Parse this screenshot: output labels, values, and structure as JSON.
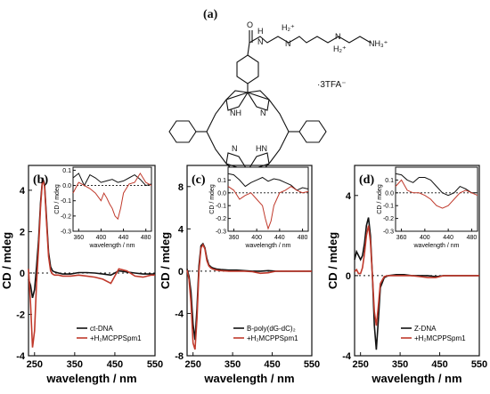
{
  "figure": {
    "panel_a_label": "(a)",
    "molecule": {
      "tail_nh": "N",
      "tail_h": "H",
      "tail_o": "O",
      "h2_plus_1": "H₂⁺",
      "h2_plus_2": "H₂⁺",
      "nh3_plus": "NH₃⁺",
      "n_tail_1": "N",
      "n_tail_2": "N",
      "ring_nh_1": "NH",
      "ring_n_1": "N",
      "ring_n_2": "N",
      "ring_hn_2": "HN",
      "counter_ion": "·3TFA⁻"
    }
  },
  "chart_data": [
    {
      "type": "line",
      "panel_label": "(b)",
      "xlabel": "wavelength / nm",
      "ylabel": "CD / mdeg",
      "xlim": [
        235,
        550
      ],
      "ylim": [
        -4,
        5.2
      ],
      "xticks": [
        250,
        350,
        450,
        550
      ],
      "yticks": [
        -4,
        -2,
        0,
        2,
        4
      ],
      "legend": {
        "placement": "bottom-right"
      },
      "series": [
        {
          "name": "ct-DNA",
          "color": "#111111",
          "x": [
            235,
            240,
            245,
            250,
            255,
            260,
            265,
            270,
            275,
            280,
            285,
            290,
            295,
            300,
            310,
            320,
            340,
            360,
            380,
            400,
            420,
            440,
            460,
            480,
            500,
            520,
            540,
            550
          ],
          "y": [
            -0.3,
            -0.6,
            -1.2,
            -0.8,
            0.3,
            1.6,
            3.4,
            4.6,
            4.3,
            2.6,
            1.0,
            0.3,
            0.1,
            0.05,
            0.0,
            -0.05,
            -0.05,
            0.02,
            0.02,
            0.0,
            -0.05,
            -0.1,
            0.1,
            0.05,
            0.0,
            -0.05,
            -0.05,
            -0.05
          ]
        },
        {
          "name": "+H₂MCPPSpm1",
          "color": "#c0392b",
          "x": [
            235,
            240,
            245,
            250,
            255,
            260,
            265,
            270,
            275,
            280,
            285,
            290,
            295,
            300,
            310,
            320,
            340,
            360,
            380,
            400,
            420,
            440,
            460,
            480,
            500,
            520,
            540,
            550
          ],
          "y": [
            0.2,
            -1.5,
            -3.6,
            -2.8,
            -0.5,
            1.2,
            3.2,
            4.55,
            4.2,
            2.4,
            0.8,
            0.1,
            -0.05,
            -0.1,
            -0.1,
            -0.15,
            -0.15,
            -0.1,
            -0.15,
            -0.2,
            -0.3,
            -0.5,
            0.2,
            0.1,
            -0.15,
            -0.2,
            -0.1,
            -0.1
          ]
        }
      ],
      "inset": {
        "xlabel": "wavelength / nm",
        "ylabel": "CD / mdeg",
        "xlim": [
          350,
          490
        ],
        "ylim": [
          -0.3,
          0.12
        ],
        "xticks": [
          360,
          400,
          440,
          480
        ],
        "yticks": [
          -0.3,
          -0.2,
          -0.1,
          0.0,
          0.1
        ],
        "series": [
          {
            "name": "ct-DNA",
            "color": "#111111",
            "x": [
              350,
              360,
              370,
              380,
              390,
              400,
              410,
              420,
              430,
              440,
              450,
              460,
              470,
              480,
              490
            ],
            "y": [
              0.05,
              0.08,
              0.0,
              0.07,
              0.05,
              0.02,
              0.03,
              0.04,
              0.02,
              0.03,
              0.05,
              0.07,
              0.04,
              0.0,
              0.01
            ]
          },
          {
            "name": "+H₂MCPPSpm1",
            "color": "#c0392b",
            "x": [
              350,
              360,
              370,
              380,
              390,
              400,
              405,
              410,
              415,
              420,
              425,
              430,
              435,
              440,
              450,
              460,
              470,
              480,
              490
            ],
            "y": [
              -0.05,
              0.02,
              0.0,
              -0.02,
              -0.05,
              -0.1,
              -0.05,
              -0.08,
              -0.12,
              -0.15,
              -0.2,
              -0.22,
              -0.15,
              -0.05,
              0.01,
              0.02,
              0.08,
              0.02,
              0.0
            ]
          }
        ]
      }
    },
    {
      "type": "line",
      "panel_label": "(c)",
      "xlabel": "wavelength / nm",
      "ylabel": "CD / mdeg",
      "xlim": [
        235,
        550
      ],
      "ylim": [
        -8,
        10
      ],
      "xticks": [
        250,
        350,
        450,
        550
      ],
      "yticks": [
        -8,
        -4,
        0,
        4,
        8
      ],
      "legend": {
        "placement": "bottom-right"
      },
      "series": [
        {
          "name": "B-poly(dG-dC)₂",
          "color": "#111111",
          "x": [
            235,
            240,
            245,
            250,
            255,
            260,
            265,
            270,
            275,
            280,
            285,
            290,
            295,
            300,
            310,
            320,
            340,
            360,
            380,
            400,
            420,
            440,
            460,
            480,
            500,
            520,
            540,
            550
          ],
          "y": [
            0.2,
            -0.5,
            -2.0,
            -5.0,
            -6.5,
            -3.5,
            0.5,
            2.4,
            2.6,
            2.2,
            1.2,
            0.6,
            0.4,
            0.3,
            0.2,
            0.15,
            0.1,
            0.1,
            0.05,
            0.0,
            0.0,
            0.05,
            0.0,
            0.0,
            0.0,
            0.0,
            0.0,
            0.0
          ]
        },
        {
          "name": "+H₂MCPPSpm1",
          "color": "#c0392b",
          "x": [
            235,
            240,
            245,
            250,
            255,
            260,
            265,
            270,
            275,
            280,
            285,
            290,
            295,
            300,
            310,
            320,
            340,
            360,
            380,
            400,
            420,
            440,
            460,
            480,
            500,
            520,
            540,
            550
          ],
          "y": [
            0.1,
            -0.8,
            -3.0,
            -6.8,
            -7.4,
            -4.5,
            0.0,
            2.2,
            2.5,
            2.1,
            1.0,
            0.5,
            0.3,
            0.2,
            0.1,
            0.05,
            0.0,
            0.0,
            0.0,
            -0.05,
            -0.2,
            -0.15,
            0.0,
            0.0,
            0.0,
            0.0,
            0.0,
            0.0
          ]
        }
      ],
      "inset": {
        "xlabel": "wavelength / nm",
        "ylabel": "CD / mdeg",
        "xlim": [
          350,
          490
        ],
        "ylim": [
          -0.3,
          0.2
        ],
        "xticks": [
          360,
          400,
          440,
          480
        ],
        "yticks": [
          -0.3,
          -0.2,
          -0.1,
          0.0,
          0.1
        ],
        "series": [
          {
            "name": "B-poly(dG-dC)₂",
            "color": "#111111",
            "x": [
              350,
              360,
              370,
              380,
              390,
              400,
              410,
              420,
              430,
              440,
              450,
              460,
              470,
              480,
              490
            ],
            "y": [
              0.15,
              0.14,
              0.1,
              0.05,
              0.08,
              0.1,
              0.12,
              0.09,
              0.11,
              0.1,
              0.08,
              0.06,
              0.02,
              0.04,
              0.03
            ]
          },
          {
            "name": "+H₂MCPPSpm1",
            "color": "#c0392b",
            "x": [
              350,
              360,
              370,
              380,
              390,
              400,
              410,
              415,
              420,
              425,
              430,
              435,
              440,
              450,
              460,
              470,
              480,
              490
            ],
            "y": [
              0.05,
              0.02,
              -0.05,
              -0.02,
              0.0,
              -0.05,
              -0.1,
              -0.2,
              -0.28,
              -0.22,
              -0.1,
              -0.05,
              0.0,
              0.02,
              0.05,
              0.02,
              0.0,
              0.01
            ]
          }
        ]
      }
    },
    {
      "type": "line",
      "panel_label": "(d)",
      "xlabel": "wavelength / nm",
      "ylabel": "CD / mdeg",
      "xlim": [
        235,
        550
      ],
      "ylim": [
        -4,
        5.5
      ],
      "xticks": [
        250,
        350,
        450,
        550
      ],
      "yticks": [
        -4,
        0,
        4
      ],
      "legend": {
        "placement": "bottom-right"
      },
      "series": [
        {
          "name": "Z-DNA",
          "color": "#111111",
          "x": [
            235,
            240,
            245,
            250,
            255,
            260,
            265,
            270,
            275,
            280,
            285,
            290,
            295,
            300,
            310,
            320,
            340,
            360,
            380,
            400,
            420,
            440,
            460,
            480,
            500,
            520,
            540,
            550
          ],
          "y": [
            0.8,
            1.2,
            1.0,
            0.8,
            1.0,
            1.6,
            2.5,
            2.9,
            2.0,
            0.0,
            -2.5,
            -3.7,
            -2.2,
            -0.6,
            -0.1,
            0.0,
            0.05,
            0.05,
            0.0,
            0.0,
            0.0,
            -0.05,
            0.0,
            0.0,
            0.0,
            0.0,
            0.0,
            0.0
          ]
        },
        {
          "name": "+H₂MCPPSpm1",
          "color": "#c0392b",
          "x": [
            235,
            240,
            245,
            250,
            255,
            260,
            265,
            270,
            275,
            280,
            285,
            290,
            295,
            300,
            310,
            320,
            340,
            360,
            380,
            400,
            420,
            440,
            460,
            480,
            500,
            520,
            540,
            550
          ],
          "y": [
            0.2,
            0.3,
            0.1,
            0.1,
            0.4,
            1.1,
            2.0,
            2.5,
            1.7,
            0.0,
            -1.8,
            -2.5,
            -1.5,
            -0.4,
            -0.05,
            0.0,
            0.0,
            0.0,
            0.0,
            -0.05,
            -0.1,
            -0.1,
            0.0,
            0.0,
            0.0,
            0.0,
            0.0,
            0.0
          ]
        }
      ],
      "inset": {
        "xlabel": "wavelength / nm",
        "ylabel": "CD / mdeg",
        "xlim": [
          350,
          490
        ],
        "ylim": [
          -0.3,
          0.2
        ],
        "xticks": [
          360,
          400,
          440,
          480
        ],
        "yticks": [
          -0.3,
          -0.2,
          -0.1,
          0.0,
          0.1
        ],
        "series": [
          {
            "name": "Z-DNA",
            "color": "#111111",
            "x": [
              350,
              360,
              370,
              380,
              390,
              400,
              410,
              420,
              430,
              440,
              450,
              460,
              470,
              480,
              490
            ],
            "y": [
              0.15,
              0.14,
              0.1,
              0.08,
              0.12,
              0.12,
              0.1,
              0.05,
              0.0,
              -0.02,
              0.0,
              0.05,
              0.03,
              0.0,
              0.0
            ]
          },
          {
            "name": "+H₂MCPPSpm1",
            "color": "#c0392b",
            "x": [
              350,
              360,
              370,
              380,
              390,
              400,
              410,
              420,
              430,
              440,
              450,
              460,
              470,
              480,
              490
            ],
            "y": [
              0.05,
              0.1,
              0.02,
              0.0,
              0.0,
              -0.02,
              -0.05,
              -0.1,
              -0.12,
              -0.1,
              -0.05,
              0.0,
              0.02,
              0.0,
              -0.02
            ]
          }
        ]
      }
    }
  ]
}
